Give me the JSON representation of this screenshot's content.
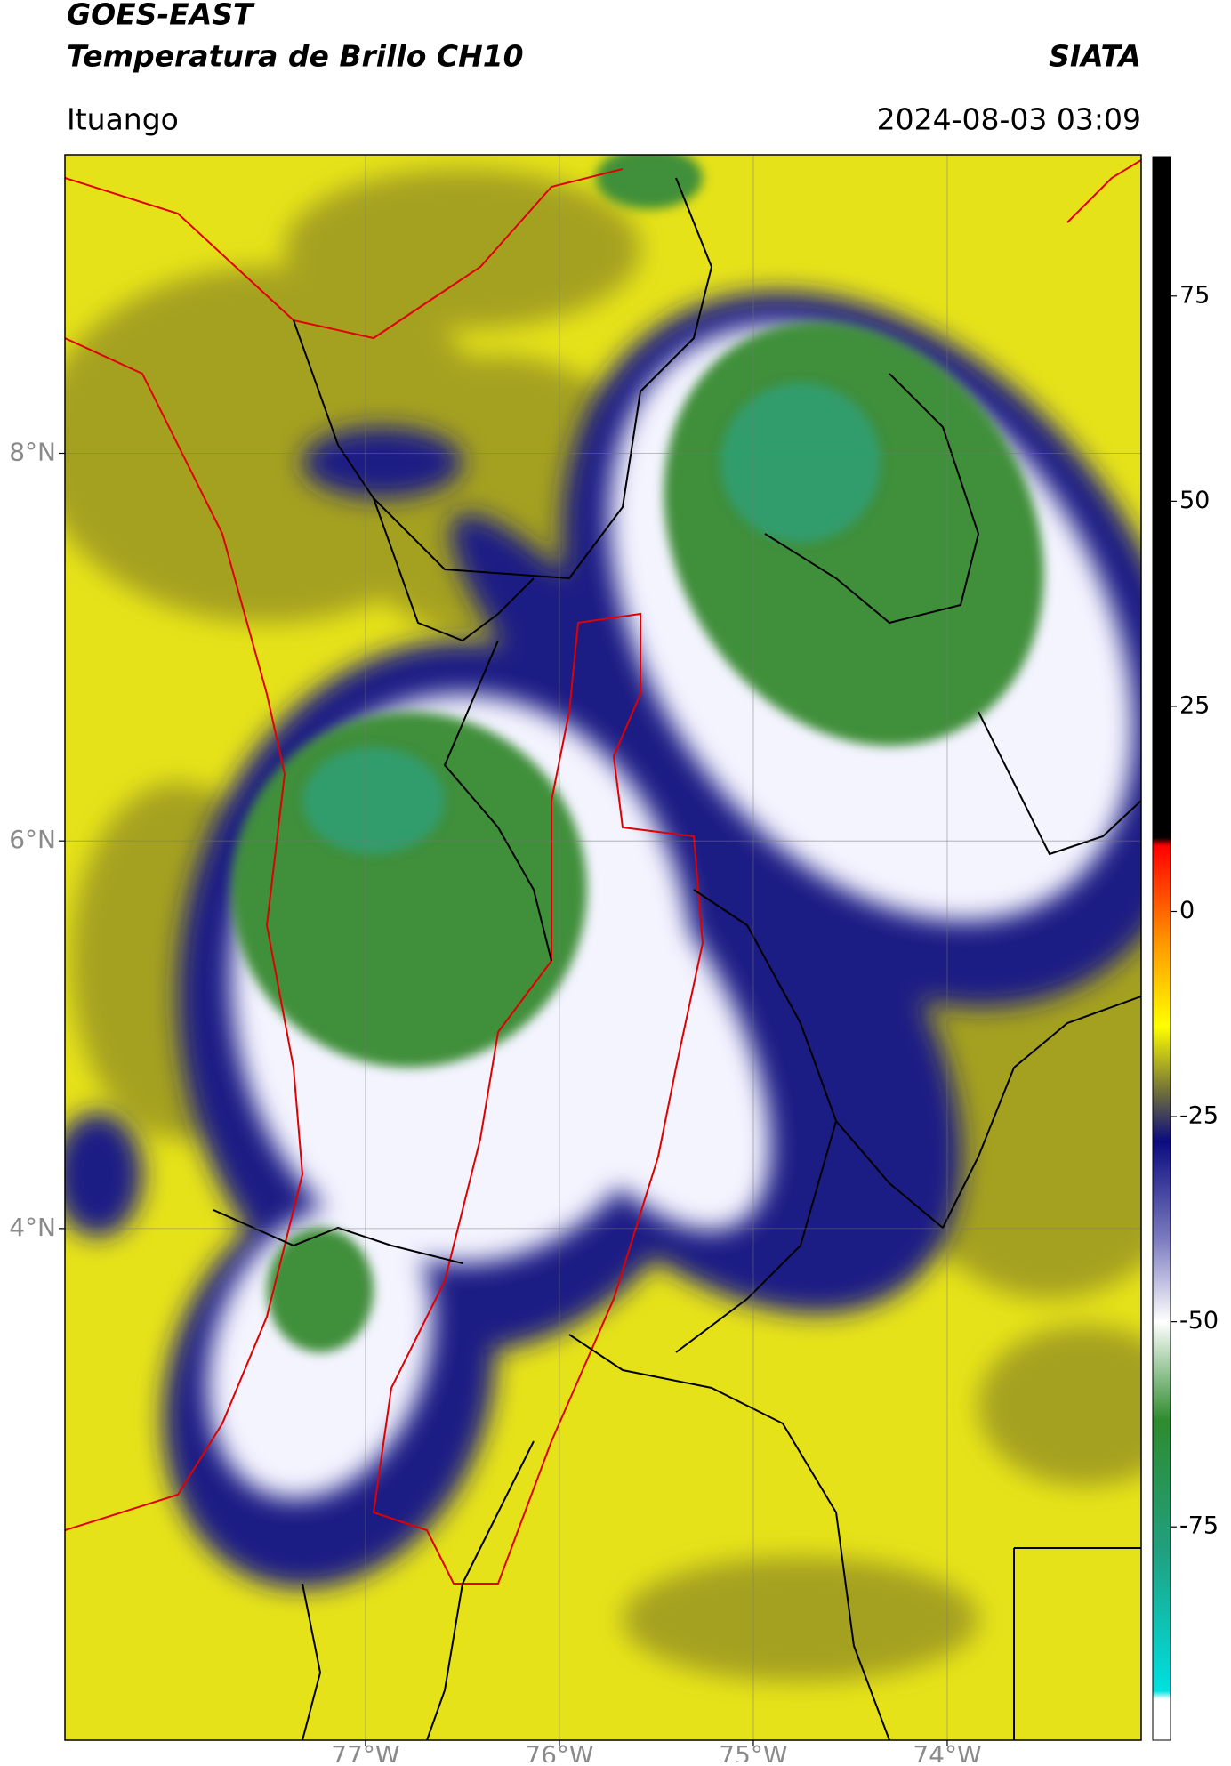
{
  "header": {
    "title": "GOES-EAST",
    "subtitle": "Temperatura de Brillo CH10",
    "brand": "SIATA",
    "location": "Ituango",
    "timestamp": "2024-08-03 03:09"
  },
  "map": {
    "lonlim": [
      -78.55,
      -73.0
    ],
    "latlim": [
      1.36,
      9.54
    ],
    "lat_ticks": [
      {
        "value": 8,
        "label": "8°N"
      },
      {
        "value": 6,
        "label": "6°N"
      },
      {
        "value": 4,
        "label": "4°N"
      }
    ],
    "lon_ticks": [
      {
        "value": -77,
        "label": "77°W"
      },
      {
        "value": -76,
        "label": "76°W"
      },
      {
        "value": -75,
        "label": "75°W"
      },
      {
        "value": -74,
        "label": "74°W"
      }
    ],
    "grid": true
  },
  "colorbar": {
    "lim": [
      -101,
      92
    ],
    "ticks": [
      75,
      50,
      25,
      0,
      -25,
      -50,
      -75
    ],
    "colormap": [
      {
        "value": 92,
        "color": "#000000"
      },
      {
        "value": 9,
        "color": "#000000"
      },
      {
        "value": 8,
        "color": "#ff0000"
      },
      {
        "value": -4,
        "color": "#ff9900"
      },
      {
        "value": -14,
        "color": "#ffff00"
      },
      {
        "value": -22,
        "color": "#6f6f3a"
      },
      {
        "value": -28,
        "color": "#0b0b80"
      },
      {
        "value": -40,
        "color": "#7c7cc0"
      },
      {
        "value": -50,
        "color": "#ffffff"
      },
      {
        "value": -62,
        "color": "#2e8b2e"
      },
      {
        "value": -78,
        "color": "#20a080"
      },
      {
        "value": -95,
        "color": "#00e0e0"
      },
      {
        "value": -96,
        "color": "#ffffff"
      },
      {
        "value": -101,
        "color": "#ffffff"
      }
    ]
  }
}
